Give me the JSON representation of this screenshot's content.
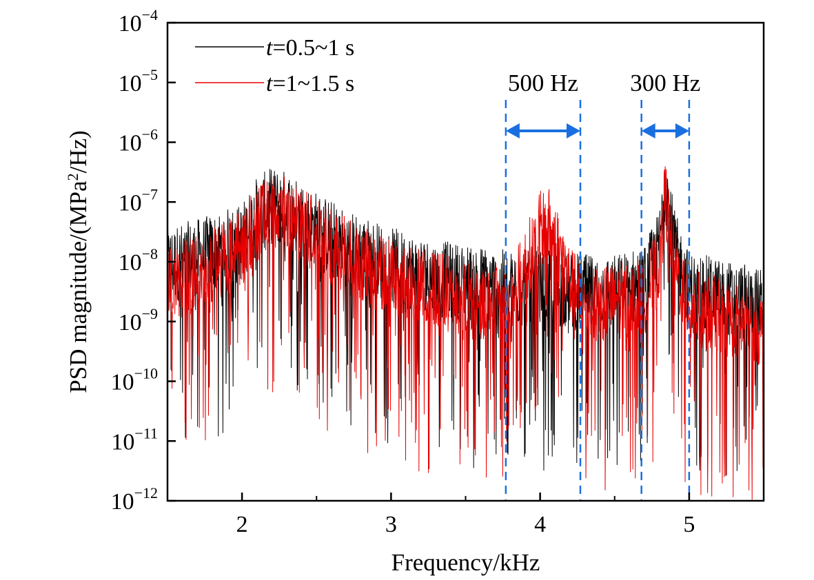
{
  "chart_data": {
    "type": "line",
    "title": "",
    "xlabel": "Frequency/kHz",
    "ylabel": "PSD magnitude/(MPa²/Hz)",
    "ylabel_parts": {
      "before": "PSD magnitude/(MPa",
      "sup": "2",
      "after": "/Hz)"
    },
    "x_unit": "kHz",
    "xlim": [
      1.5,
      5.5
    ],
    "ylim": [
      1e-12,
      0.0001
    ],
    "y_scale": "log",
    "x_ticks": [
      2,
      3,
      4,
      5
    ],
    "x_tick_labels": [
      "2",
      "3",
      "4",
      "5"
    ],
    "x_minor_ticks": [
      2.5,
      3.5,
      4.5
    ],
    "y_ticks": [
      0.0001,
      1e-05,
      1e-06,
      1e-07,
      1e-08,
      1e-09,
      1e-10,
      1e-11,
      1e-12
    ],
    "y_tick_labels": [
      {
        "base": "10",
        "exp": "−4"
      },
      {
        "base": "10",
        "exp": "−5"
      },
      {
        "base": "10",
        "exp": "−6"
      },
      {
        "base": "10",
        "exp": "−7"
      },
      {
        "base": "10",
        "exp": "−8"
      },
      {
        "base": "10",
        "exp": "−9"
      },
      {
        "base": "10",
        "exp": "−10"
      },
      {
        "base": "10",
        "exp": "−11"
      },
      {
        "base": "10",
        "exp": "−12"
      }
    ],
    "grid": false,
    "legend_position": "top-left",
    "series": [
      {
        "name_parts": {
          "italic": "t",
          "rest": "=0.5~1 s"
        },
        "color": "#000000",
        "x": [
          1.5,
          1.75,
          2.0,
          2.1,
          2.2,
          2.3,
          2.5,
          2.7,
          3.0,
          3.3,
          3.6,
          3.8,
          4.0,
          4.1,
          4.3,
          4.5,
          4.7,
          4.8,
          4.84,
          4.9,
          5.0,
          5.2,
          5.5
        ],
        "y": [
          1e-08,
          1.5e-08,
          2.5e-08,
          7e-08,
          1e-07,
          9e-08,
          4e-08,
          2e-08,
          1e-08,
          6e-09,
          5e-09,
          4e-09,
          4e-09,
          4e-09,
          3.5e-09,
          3.5e-09,
          5e-09,
          2e-08,
          3e-07,
          2e-08,
          4e-09,
          3e-09,
          2e-09
        ]
      },
      {
        "name_parts": {
          "italic": "t",
          "rest": "=1~1.5 s"
        },
        "color": "#e60000",
        "x": [
          1.5,
          1.75,
          2.0,
          2.1,
          2.2,
          2.3,
          2.5,
          2.7,
          3.0,
          3.3,
          3.6,
          3.8,
          3.9,
          4.0,
          4.05,
          4.1,
          4.2,
          4.3,
          4.5,
          4.7,
          4.8,
          4.84,
          4.9,
          5.0,
          5.2,
          5.5
        ],
        "y": [
          5e-09,
          8e-09,
          2e-08,
          5e-08,
          8e-08,
          8e-08,
          3e-08,
          1.5e-08,
          6e-09,
          4e-09,
          2.5e-09,
          2.5e-09,
          1e-08,
          4e-08,
          5e-08,
          3e-08,
          5e-09,
          2e-09,
          2.5e-09,
          3e-09,
          1.2e-08,
          1.5e-07,
          1e-08,
          2e-09,
          1.5e-09,
          8e-10
        ]
      }
    ],
    "annotations": [
      {
        "text": "500 Hz",
        "x1": 3.77,
        "x2": 4.27,
        "color": "#1a6fe0"
      },
      {
        "text": "300 Hz",
        "x1": 4.68,
        "x2": 5.0,
        "color": "#1a6fe0"
      }
    ]
  }
}
